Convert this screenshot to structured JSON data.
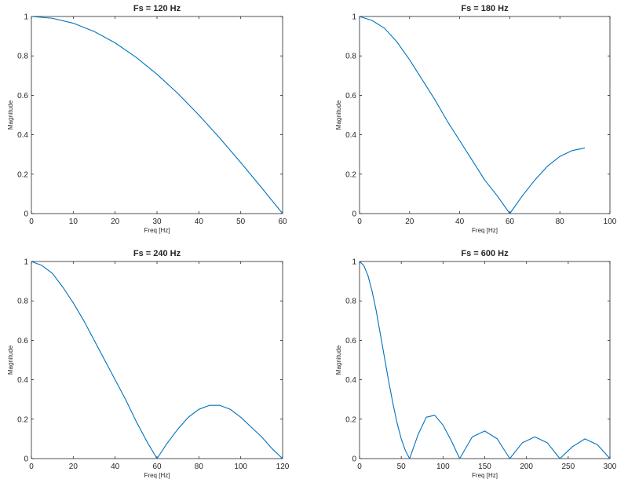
{
  "chart_data": [
    {
      "type": "line",
      "title": "Fs = 120 Hz",
      "xlabel": "Freq [Hz]",
      "ylabel": "Magnitude",
      "xlim": [
        0,
        60
      ],
      "ylim": [
        0,
        1
      ],
      "xticks": [
        0,
        10,
        20,
        30,
        40,
        50,
        60
      ],
      "yticks": [
        0,
        0.2,
        0.4,
        0.6,
        0.8,
        1
      ],
      "grid": false,
      "color": "#0072BD",
      "series": [
        {
          "x": [
            0,
            5,
            10,
            15,
            20,
            25,
            30,
            35,
            40,
            45,
            50,
            55,
            60
          ],
          "y": [
            1.0,
            0.991,
            0.966,
            0.924,
            0.866,
            0.793,
            0.707,
            0.609,
            0.5,
            0.383,
            0.259,
            0.131,
            0.0
          ]
        }
      ]
    },
    {
      "type": "line",
      "title": "Fs = 180 Hz",
      "xlabel": "Freq [Hz]",
      "ylabel": "Magnitude",
      "xlim": [
        0,
        100
      ],
      "ylim": [
        0,
        1
      ],
      "xticks": [
        0,
        20,
        40,
        60,
        80,
        100
      ],
      "yticks": [
        0,
        0.2,
        0.4,
        0.6,
        0.8,
        1
      ],
      "grid": false,
      "color": "#0072BD",
      "series": [
        {
          "x": [
            0,
            5,
            10,
            15,
            20,
            25,
            30,
            35,
            40,
            45,
            50,
            55,
            60,
            65,
            70,
            75,
            80,
            85,
            90
          ],
          "y": [
            1.0,
            0.98,
            0.94,
            0.87,
            0.78,
            0.68,
            0.58,
            0.47,
            0.37,
            0.27,
            0.17,
            0.09,
            0.0,
            0.09,
            0.17,
            0.24,
            0.29,
            0.32,
            0.333
          ]
        }
      ]
    },
    {
      "type": "line",
      "title": "Fs = 240 Hz",
      "xlabel": "Freq [Hz]",
      "ylabel": "Magnitude",
      "xlim": [
        0,
        120
      ],
      "ylim": [
        0,
        1
      ],
      "xticks": [
        0,
        20,
        40,
        60,
        80,
        100,
        120
      ],
      "yticks": [
        0,
        0.2,
        0.4,
        0.6,
        0.8,
        1
      ],
      "grid": false,
      "color": "#0072BD",
      "series": [
        {
          "x": [
            0,
            5,
            10,
            15,
            20,
            25,
            30,
            35,
            40,
            45,
            50,
            55,
            60,
            65,
            70,
            75,
            80,
            85,
            90,
            95,
            100,
            105,
            110,
            115,
            120
          ],
          "y": [
            1.0,
            0.98,
            0.94,
            0.87,
            0.79,
            0.7,
            0.6,
            0.5,
            0.4,
            0.3,
            0.19,
            0.09,
            0.0,
            0.08,
            0.15,
            0.21,
            0.25,
            0.27,
            0.27,
            0.25,
            0.21,
            0.16,
            0.11,
            0.05,
            0.0
          ]
        }
      ]
    },
    {
      "type": "line",
      "title": "Fs = 600 Hz",
      "xlabel": "Freq [Hz]",
      "ylabel": "Magnitude",
      "xlim": [
        0,
        300
      ],
      "ylim": [
        0,
        1
      ],
      "xticks": [
        0,
        50,
        100,
        150,
        200,
        250,
        300
      ],
      "yticks": [
        0,
        0.2,
        0.4,
        0.6,
        0.8,
        1
      ],
      "grid": false,
      "color": "#0072BD",
      "series": [
        {
          "x": [
            0,
            5,
            10,
            15,
            20,
            25,
            30,
            35,
            40,
            45,
            50,
            55,
            60,
            70,
            80,
            90,
            100,
            110,
            120,
            135,
            150,
            165,
            180,
            195,
            210,
            225,
            240,
            255,
            270,
            285,
            300
          ],
          "y": [
            1.0,
            0.98,
            0.93,
            0.85,
            0.75,
            0.63,
            0.51,
            0.39,
            0.28,
            0.18,
            0.1,
            0.04,
            0.0,
            0.12,
            0.21,
            0.22,
            0.17,
            0.09,
            0.0,
            0.11,
            0.14,
            0.1,
            0.0,
            0.08,
            0.11,
            0.08,
            0.0,
            0.06,
            0.1,
            0.07,
            0.0
          ]
        }
      ]
    }
  ]
}
